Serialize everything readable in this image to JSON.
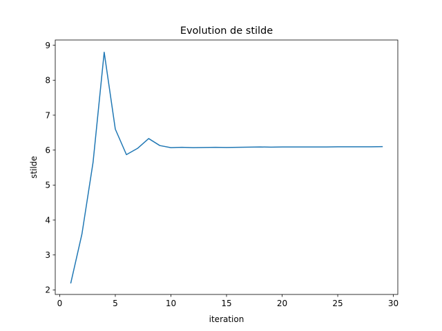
{
  "chart_data": {
    "type": "line",
    "title": "Evolution de stilde",
    "xlabel": "iteration",
    "ylabel": "stilde",
    "xlim": [
      -0.4,
      30.4
    ],
    "ylim": [
      1.87,
      9.15
    ],
    "xticks": [
      0,
      5,
      10,
      15,
      20,
      25,
      30
    ],
    "yticks": [
      2,
      3,
      4,
      5,
      6,
      7,
      8,
      9
    ],
    "xtick_labels": [
      "0",
      "5",
      "10",
      "15",
      "20",
      "25",
      "30"
    ],
    "ytick_labels": [
      "2",
      "3",
      "4",
      "5",
      "6",
      "7",
      "8",
      "9"
    ],
    "grid": false,
    "legend": "none",
    "series_color": "#1f77b4",
    "x": [
      1,
      2,
      3,
      4,
      5,
      6,
      7,
      8,
      9,
      10,
      11,
      12,
      13,
      14,
      15,
      16,
      17,
      18,
      19,
      20,
      21,
      22,
      23,
      24,
      25,
      26,
      27,
      28,
      29
    ],
    "series": [
      {
        "values": [
          2.2,
          3.6,
          5.65,
          8.8,
          6.6,
          5.87,
          6.05,
          6.33,
          6.13,
          6.07,
          6.08,
          6.07,
          6.075,
          6.08,
          6.075,
          6.08,
          6.085,
          6.09,
          6.085,
          6.09,
          6.09,
          6.09,
          6.09,
          6.09,
          6.095,
          6.095,
          6.095,
          6.095,
          6.1
        ]
      }
    ]
  }
}
